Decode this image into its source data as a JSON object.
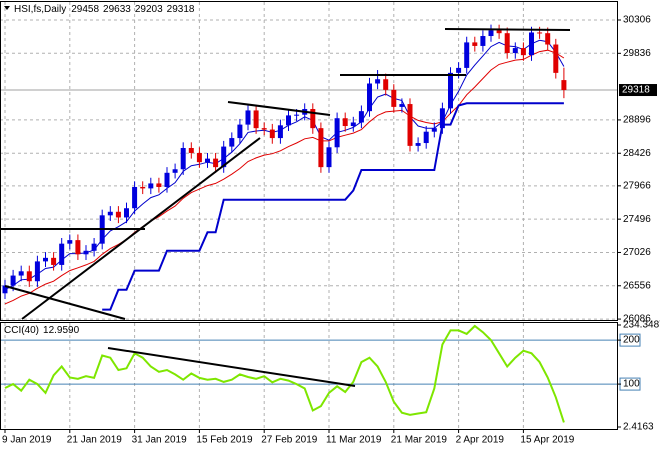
{
  "chart_data": [
    {
      "type": "candlestick",
      "title": "HSI,fs,Daily",
      "categories": [
        "9 Jan 2019",
        null,
        null,
        null,
        null,
        null,
        null,
        null,
        "21 Jan 2019",
        null,
        null,
        null,
        null,
        null,
        null,
        null,
        "31 Jan 2019",
        null,
        null,
        null,
        null,
        null,
        null,
        null,
        "15 Feb 2019",
        null,
        null,
        null,
        null,
        null,
        null,
        null,
        "27 Feb 2019",
        null,
        null,
        null,
        null,
        null,
        null,
        null,
        "11 Mar 2019",
        null,
        null,
        null,
        null,
        null,
        null,
        null,
        "21 Mar 2019",
        null,
        null,
        null,
        null,
        null,
        null,
        null,
        "2 Apr 2019",
        null,
        null,
        null,
        null,
        null,
        null,
        null,
        "15 Apr 2019",
        null,
        null,
        null,
        null,
        null
      ],
      "open": [
        26450,
        26560,
        26700,
        26760,
        26620,
        26900,
        26950,
        26850,
        27150,
        27200,
        27000,
        27050,
        27150,
        27550,
        27600,
        27520,
        27650,
        27950,
        27930,
        28000,
        27950,
        28150,
        28200,
        28500,
        28430,
        28300,
        28350,
        28230,
        28520,
        28640,
        28830,
        29030,
        28780,
        28760,
        28640,
        28820,
        28960,
        28970,
        29050,
        28780,
        28230,
        28510,
        28920,
        28810,
        28860,
        29020,
        29410,
        29470,
        29320,
        29080,
        29120,
        28530,
        28570,
        28730,
        28780,
        29060,
        29560,
        29630,
        29990,
        29940,
        30080,
        30160,
        30120,
        29840,
        29910,
        29810,
        30130,
        30120,
        29960,
        29458
      ],
      "high": [
        26640,
        26780,
        26840,
        26840,
        26980,
        27030,
        27030,
        27230,
        27280,
        27280,
        27130,
        27230,
        27630,
        27680,
        27680,
        27730,
        28030,
        28030,
        28080,
        28080,
        28230,
        28280,
        28580,
        28580,
        28510,
        28430,
        28430,
        28600,
        28720,
        28910,
        29110,
        29110,
        28860,
        28840,
        28900,
        29040,
        29050,
        29130,
        29130,
        28860,
        28590,
        29000,
        29000,
        28940,
        29100,
        29490,
        29600,
        29550,
        29400,
        29200,
        29200,
        28650,
        28810,
        28860,
        29140,
        29640,
        29710,
        30070,
        30070,
        30160,
        30240,
        30240,
        30200,
        29990,
        29990,
        30210,
        30210,
        30200,
        30040,
        29633
      ],
      "low": [
        26370,
        26480,
        26620,
        26540,
        26540,
        26820,
        26770,
        26770,
        27070,
        26920,
        26920,
        26970,
        27070,
        27470,
        27440,
        27440,
        27570,
        27850,
        27850,
        27870,
        27870,
        28070,
        28120,
        28350,
        28220,
        28220,
        28150,
        28150,
        28440,
        28560,
        28750,
        28700,
        28680,
        28560,
        28560,
        28740,
        28880,
        28890,
        28700,
        28150,
        28150,
        28430,
        28730,
        28730,
        28780,
        28940,
        29330,
        29240,
        29000,
        29000,
        28450,
        28450,
        28490,
        28650,
        28700,
        28980,
        29480,
        29550,
        29860,
        29860,
        30000,
        30040,
        29760,
        29760,
        29730,
        29730,
        30040,
        29880,
        29480,
        29203
      ],
      "close": [
        26560,
        26700,
        26760,
        26620,
        26900,
        26950,
        26850,
        27150,
        27200,
        27000,
        27050,
        27150,
        27550,
        27600,
        27520,
        27650,
        27950,
        27930,
        28000,
        27950,
        28150,
        28200,
        28500,
        28430,
        28300,
        28350,
        28230,
        28520,
        28640,
        28830,
        29030,
        28780,
        28760,
        28640,
        28820,
        28960,
        28970,
        29050,
        28780,
        28230,
        28510,
        28920,
        28810,
        28860,
        29020,
        29410,
        29470,
        29320,
        29080,
        29120,
        28530,
        28570,
        28730,
        28780,
        29060,
        29560,
        29630,
        29990,
        29940,
        30080,
        30160,
        30120,
        29840,
        29910,
        29810,
        30130,
        30120,
        29960,
        29560,
        29318
      ],
      "up_color": "#0000dd",
      "down_color": "#e00000",
      "series": [
        {
          "color": "#0000cc",
          "width": 1,
          "values": [
            26500,
            26560,
            26640,
            26650,
            26720,
            26800,
            26820,
            26920,
            27010,
            27010,
            27020,
            27060,
            27210,
            27330,
            27390,
            27460,
            27610,
            27710,
            27800,
            27840,
            27930,
            28010,
            28170,
            28250,
            28270,
            28300,
            28280,
            28350,
            28440,
            28560,
            28720,
            28740,
            28750,
            28720,
            28750,
            28820,
            28870,
            28940,
            28890,
            28660,
            28610,
            28720,
            28750,
            28790,
            28870,
            29060,
            29220,
            29260,
            29200,
            29170,
            28940,
            28810,
            28780,
            28780,
            28870,
            29110,
            29300,
            29530,
            29670,
            29800,
            29930,
            29990,
            29940,
            29930,
            29890,
            29970,
            30020,
            30000,
            29850,
            29650
          ]
        },
        {
          "color": "#e00000",
          "width": 1,
          "values": [
            26300,
            26350,
            26410,
            26450,
            26520,
            26580,
            26620,
            26700,
            26770,
            26810,
            26850,
            26900,
            27000,
            27080,
            27140,
            27210,
            27310,
            27390,
            27470,
            27530,
            27610,
            27680,
            27790,
            27870,
            27920,
            27970,
            28000,
            28060,
            28130,
            28210,
            28310,
            28360,
            28400,
            28420,
            28460,
            28520,
            28570,
            28630,
            28650,
            28600,
            28600,
            28650,
            28680,
            28710,
            28760,
            28870,
            28960,
            29010,
            29020,
            29030,
            28950,
            28890,
            28860,
            28840,
            28870,
            28990,
            29100,
            29250,
            29360,
            29480,
            29600,
            29680,
            29710,
            29740,
            29750,
            29810,
            29860,
            29880,
            29840,
            29770
          ]
        },
        {
          "color": "#0000cc",
          "width": 2,
          "values": [
            null,
            null,
            null,
            null,
            null,
            null,
            null,
            null,
            null,
            null,
            null,
            null,
            26220,
            26220,
            26500,
            26500,
            26770,
            26770,
            26770,
            26770,
            27050,
            27050,
            27050,
            27050,
            27050,
            27310,
            27310,
            27770,
            27770,
            27770,
            27770,
            27770,
            27770,
            27770,
            27770,
            27770,
            27770,
            27770,
            27770,
            27770,
            27770,
            27770,
            27770,
            27900,
            28190,
            28190,
            28190,
            28190,
            28190,
            28190,
            28190,
            28190,
            28190,
            28190,
            28830,
            28830,
            29100,
            29130,
            29130,
            29130,
            29130,
            29130,
            29130,
            29130,
            29130,
            29130,
            29130,
            29130,
            29130,
            29130
          ]
        }
      ],
      "ylim": [
        26073,
        30560
      ],
      "yticks": [
        26086,
        26556,
        27026,
        27496,
        27966,
        28426,
        28896,
        29836,
        30306
      ],
      "grid": true
    },
    {
      "type": "line",
      "title": "CCI(40)",
      "series": [
        {
          "color": "#7ee600",
          "width": 2,
          "values": [
            91,
            100,
            85,
            110,
            100,
            80,
            120,
            140,
            115,
            112,
            118,
            114,
            165,
            160,
            132,
            136,
            170,
            160,
            140,
            128,
            132,
            122,
            110,
            124,
            114,
            110,
            112,
            105,
            110,
            122,
            116,
            112,
            118,
            104,
            112,
            108,
            100,
            90,
            40,
            50,
            80,
            95,
            82,
            105,
            150,
            160,
            140,
            105,
            60,
            35,
            30,
            33,
            36,
            90,
            190,
            222,
            222,
            214,
            232,
            218,
            200,
            170,
            140,
            160,
            176,
            170,
            150,
            115,
            70,
            12.959
          ],
          "value_labels": [
            null,
            null,
            null,
            null,
            null,
            null,
            null,
            null,
            null,
            null,
            null,
            null,
            null,
            null,
            null,
            null,
            null,
            null,
            null,
            null,
            null,
            null,
            null,
            null,
            null,
            null,
            null,
            null,
            null,
            null,
            null,
            null,
            null,
            null,
            null,
            null,
            null,
            null,
            null,
            null,
            null,
            null,
            null,
            null,
            null,
            null,
            null,
            null,
            null,
            null,
            null,
            null,
            null,
            null,
            null,
            null,
            null,
            null,
            null,
            null,
            null,
            null,
            null,
            null,
            null,
            null,
            null,
            null,
            null,
            "12.9590"
          ]
        }
      ],
      "ylim": [
        2.4163,
        234.3487
      ],
      "yticks": [
        2.4163,
        100,
        200,
        234.3487
      ],
      "level_color": "#4682b4",
      "grid": true
    }
  ]
}
